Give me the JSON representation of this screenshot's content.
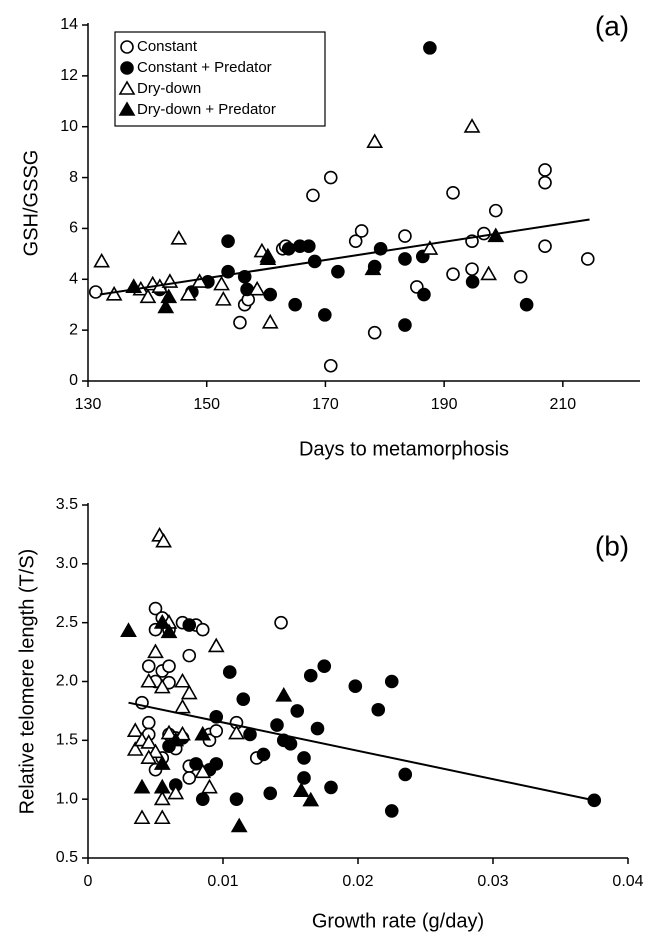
{
  "chart_data": [
    {
      "type": "scatter",
      "panel_label": "(a)",
      "x_label": "Days to metamorphosis",
      "y_label": "GSH/GSSG",
      "xlim": [
        130,
        223
      ],
      "xticks": [
        130,
        150,
        170,
        190,
        210
      ],
      "ylim": [
        0,
        14
      ],
      "yticks": [
        0,
        2,
        4,
        6,
        8,
        10,
        12,
        14
      ],
      "legend": "upper left",
      "series": [
        {
          "name": "Constant",
          "marker": "circle",
          "filled": false,
          "color": "#000000",
          "x": [
            131.3,
            155.6,
            156.4,
            157,
            162.8,
            163.3,
            167.9,
            170.9,
            170.9,
            175.1,
            176.1,
            178.3,
            183.4,
            185.4,
            191.5,
            191.5,
            194.7,
            194.7,
            196.7,
            198.7,
            202.9,
            207,
            207,
            207,
            214.2
          ],
          "y": [
            3.5,
            2.3,
            3.0,
            3.2,
            5.2,
            5.3,
            7.3,
            8.0,
            0.6,
            5.5,
            5.9,
            1.9,
            5.7,
            3.7,
            7.4,
            4.2,
            5.5,
            4.4,
            5.8,
            6.7,
            4.1,
            8.3,
            7.8,
            5.3,
            4.8
          ]
        },
        {
          "name": "Constant + Predator",
          "marker": "circle",
          "filled": true,
          "color": "#000000",
          "x": [
            142.1,
            147.5,
            150.2,
            153.6,
            153.6,
            156.4,
            156.8,
            160.7,
            163.8,
            164.9,
            165.7,
            167.2,
            168.2,
            169.9,
            172.1,
            178.3,
            179.3,
            183.4,
            183.4,
            186.4,
            187.6,
            186.6,
            194.8,
            203.9
          ],
          "y": [
            3.6,
            3.5,
            3.9,
            5.5,
            4.3,
            4.1,
            3.6,
            3.4,
            5.2,
            3.0,
            5.3,
            5.3,
            4.7,
            2.6,
            4.3,
            4.5,
            5.2,
            2.2,
            4.8,
            4.9,
            13.1,
            3.4,
            3.9,
            3.0
          ]
        },
        {
          "name": "Dry-down",
          "marker": "triangle",
          "filled": false,
          "color": "#000000",
          "x": [
            132.3,
            134.4,
            138.9,
            140.1,
            140.9,
            142.1,
            143.8,
            145.3,
            146.9,
            148.8,
            152.5,
            152.8,
            159.3,
            160.7,
            160.3,
            158.5,
            178.3,
            187.6,
            194.7,
            197.5
          ],
          "y": [
            4.7,
            3.4,
            3.6,
            3.3,
            3.8,
            3.7,
            3.9,
            5.6,
            3.4,
            3.9,
            3.8,
            3.2,
            5.1,
            2.3,
            4.9,
            3.6,
            9.4,
            5.2,
            10.0,
            4.2
          ]
        },
        {
          "name": "Dry-down + Predator",
          "marker": "triangle",
          "filled": true,
          "color": "#000000",
          "x": [
            137.7,
            143.1,
            143.6,
            160.3,
            178,
            198.7
          ],
          "y": [
            3.7,
            2.9,
            3.3,
            4.8,
            4.4,
            5.7
          ]
        }
      ],
      "fit": {
        "x": [
          132,
          214.5
        ],
        "y": [
          3.4,
          6.35
        ]
      }
    },
    {
      "type": "scatter",
      "panel_label": "(b)",
      "x_label": "Growth rate (g/day)",
      "y_label": "Relative telomere length (T/S)",
      "xlim": [
        0,
        0.04
      ],
      "xticks": [
        0,
        0.01,
        0.02,
        0.03,
        0.04
      ],
      "ylim": [
        0.5,
        3.5
      ],
      "yticks": [
        0.5,
        {
          "value": 1,
          "label": "1.0"
        },
        1.5,
        {
          "value": 2,
          "label": "2.0"
        },
        2.5,
        {
          "value": 3,
          "label": "3.0"
        },
        3.5
      ],
      "series": [
        {
          "marker": "circle",
          "filled": false,
          "color": "#000000",
          "x": [
            0.004,
            0.0045,
            0.0045,
            0.005,
            0.005,
            0.005,
            0.0055,
            0.0055,
            0.006,
            0.006,
            0.005,
            0.0055,
            0.006,
            0.0065,
            0.0065,
            0.007,
            0.0075,
            0.0075,
            0.0075,
            0.008,
            0.0085,
            0.009,
            0.009,
            0.0095,
            0.011,
            0.0125,
            0.0143,
            0.0045,
            0.006
          ],
          "y": [
            1.82,
            1.65,
            2.13,
            2.0,
            2.44,
            2.62,
            2.54,
            2.09,
            2.13,
            1.99,
            1.25,
            1.35,
            1.55,
            1.43,
            1.52,
            2.5,
            1.28,
            1.18,
            2.22,
            2.48,
            2.44,
            1.55,
            1.5,
            1.58,
            1.65,
            1.35,
            2.5,
            1.55,
            2.44
          ]
        },
        {
          "marker": "circle",
          "filled": true,
          "color": "#000000",
          "x": [
            0.006,
            0.0065,
            0.007,
            0.0075,
            0.008,
            0.0085,
            0.009,
            0.0095,
            0.0105,
            0.011,
            0.0115,
            0.012,
            0.013,
            0.0135,
            0.014,
            0.0145,
            0.015,
            0.0155,
            0.016,
            0.016,
            0.0165,
            0.017,
            0.0175,
            0.018,
            0.0198,
            0.0215,
            0.0225,
            0.0225,
            0.0235,
            0.0375,
            0.0095
          ],
          "y": [
            1.45,
            1.12,
            1.52,
            2.48,
            1.3,
            1.0,
            1.25,
            1.7,
            2.08,
            1.0,
            1.85,
            1.55,
            1.38,
            1.05,
            1.63,
            1.5,
            1.47,
            1.75,
            1.35,
            1.18,
            2.05,
            1.6,
            2.13,
            1.1,
            1.96,
            1.76,
            2.0,
            0.9,
            1.21,
            0.99,
            1.3
          ]
        },
        {
          "marker": "triangle",
          "filled": false,
          "color": "#000000",
          "x": [
            0.0035,
            0.0035,
            0.004,
            0.004,
            0.0045,
            0.0045,
            0.005,
            0.005,
            0.0053,
            0.0056,
            0.0055,
            0.0055,
            0.006,
            0.006,
            0.0065,
            0.007,
            0.007,
            0.007,
            0.0075,
            0.0085,
            0.009,
            0.0095,
            0.011,
            0.0045,
            0.0055
          ],
          "y": [
            1.58,
            1.42,
            1.5,
            0.84,
            2.0,
            1.48,
            2.25,
            1.4,
            3.24,
            3.19,
            0.84,
            1.0,
            2.5,
            1.56,
            1.05,
            2.0,
            1.78,
            1.55,
            1.9,
            1.23,
            1.1,
            2.3,
            1.56,
            1.35,
            1.95
          ]
        },
        {
          "marker": "triangle",
          "filled": true,
          "color": "#000000",
          "x": [
            0.003,
            0.0055,
            0.006,
            0.0055,
            0.0055,
            0.0065,
            0.0085,
            0.0112,
            0.0145,
            0.0158,
            0.0165,
            0.004
          ],
          "y": [
            2.43,
            2.5,
            2.42,
            1.3,
            1.1,
            1.5,
            1.55,
            0.77,
            1.88,
            1.07,
            0.99,
            1.1
          ]
        }
      ],
      "fit": {
        "x": [
          0.003,
          0.0375
        ],
        "y": [
          1.82,
          0.99
        ]
      }
    }
  ]
}
